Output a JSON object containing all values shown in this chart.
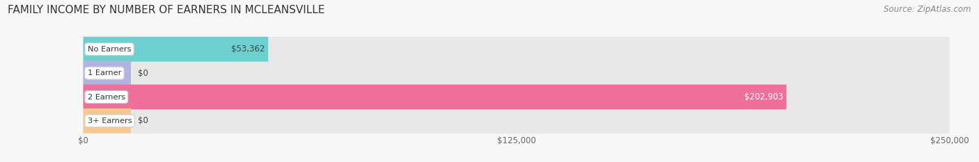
{
  "title": "FAMILY INCOME BY NUMBER OF EARNERS IN MCLEANSVILLE",
  "source": "Source: ZipAtlas.com",
  "categories": [
    "No Earners",
    "1 Earner",
    "2 Earners",
    "3+ Earners"
  ],
  "values": [
    53362,
    0,
    202903,
    0
  ],
  "bar_colors": [
    "#6ecfcf",
    "#b0b4e0",
    "#f06e9b",
    "#f5c990"
  ],
  "bar_bg_color": "#e8e8e8",
  "max_value": 250000,
  "xtick_values": [
    0,
    125000,
    250000
  ],
  "xtick_labels": [
    "$0",
    "$125,000",
    "$250,000"
  ],
  "value_label_colors": [
    "#444444",
    "#444444",
    "#ffffff",
    "#444444"
  ],
  "title_fontsize": 11,
  "source_fontsize": 8.5,
  "bar_height": 0.52,
  "background_color": "#f7f7f7"
}
